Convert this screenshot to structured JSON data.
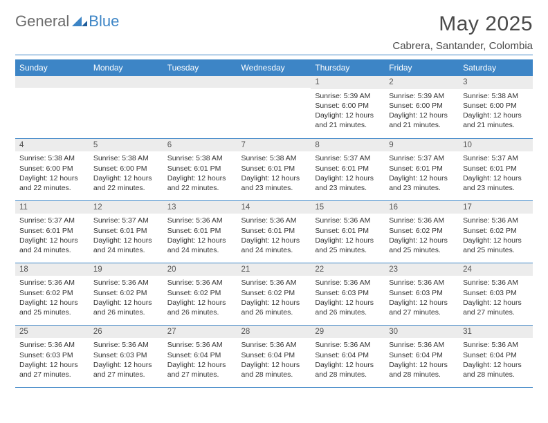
{
  "brand": {
    "general": "General",
    "blue": "Blue"
  },
  "header": {
    "title": "May 2025",
    "location": "Cabrera, Santander, Colombia"
  },
  "colors": {
    "accent": "#3d85c6",
    "header_text": "#ffffff",
    "daynum_bg": "#ececec",
    "body_text": "#333333",
    "page_bg": "#ffffff"
  },
  "typography": {
    "title_fontsize": 30,
    "location_fontsize": 15,
    "dayheader_fontsize": 12,
    "daynum_fontsize": 11.5,
    "detail_fontsize": 10.5
  },
  "calendar": {
    "day_headers": [
      "Sunday",
      "Monday",
      "Tuesday",
      "Wednesday",
      "Thursday",
      "Friday",
      "Saturday"
    ],
    "weeks": [
      [
        null,
        null,
        null,
        null,
        {
          "d": "1",
          "sunrise": "5:39 AM",
          "sunset": "6:00 PM",
          "daylight": "12 hours and 21 minutes."
        },
        {
          "d": "2",
          "sunrise": "5:39 AM",
          "sunset": "6:00 PM",
          "daylight": "12 hours and 21 minutes."
        },
        {
          "d": "3",
          "sunrise": "5:38 AM",
          "sunset": "6:00 PM",
          "daylight": "12 hours and 21 minutes."
        }
      ],
      [
        {
          "d": "4",
          "sunrise": "5:38 AM",
          "sunset": "6:00 PM",
          "daylight": "12 hours and 22 minutes."
        },
        {
          "d": "5",
          "sunrise": "5:38 AM",
          "sunset": "6:00 PM",
          "daylight": "12 hours and 22 minutes."
        },
        {
          "d": "6",
          "sunrise": "5:38 AM",
          "sunset": "6:01 PM",
          "daylight": "12 hours and 22 minutes."
        },
        {
          "d": "7",
          "sunrise": "5:38 AM",
          "sunset": "6:01 PM",
          "daylight": "12 hours and 23 minutes."
        },
        {
          "d": "8",
          "sunrise": "5:37 AM",
          "sunset": "6:01 PM",
          "daylight": "12 hours and 23 minutes."
        },
        {
          "d": "9",
          "sunrise": "5:37 AM",
          "sunset": "6:01 PM",
          "daylight": "12 hours and 23 minutes."
        },
        {
          "d": "10",
          "sunrise": "5:37 AM",
          "sunset": "6:01 PM",
          "daylight": "12 hours and 23 minutes."
        }
      ],
      [
        {
          "d": "11",
          "sunrise": "5:37 AM",
          "sunset": "6:01 PM",
          "daylight": "12 hours and 24 minutes."
        },
        {
          "d": "12",
          "sunrise": "5:37 AM",
          "sunset": "6:01 PM",
          "daylight": "12 hours and 24 minutes."
        },
        {
          "d": "13",
          "sunrise": "5:36 AM",
          "sunset": "6:01 PM",
          "daylight": "12 hours and 24 minutes."
        },
        {
          "d": "14",
          "sunrise": "5:36 AM",
          "sunset": "6:01 PM",
          "daylight": "12 hours and 24 minutes."
        },
        {
          "d": "15",
          "sunrise": "5:36 AM",
          "sunset": "6:01 PM",
          "daylight": "12 hours and 25 minutes."
        },
        {
          "d": "16",
          "sunrise": "5:36 AM",
          "sunset": "6:02 PM",
          "daylight": "12 hours and 25 minutes."
        },
        {
          "d": "17",
          "sunrise": "5:36 AM",
          "sunset": "6:02 PM",
          "daylight": "12 hours and 25 minutes."
        }
      ],
      [
        {
          "d": "18",
          "sunrise": "5:36 AM",
          "sunset": "6:02 PM",
          "daylight": "12 hours and 25 minutes."
        },
        {
          "d": "19",
          "sunrise": "5:36 AM",
          "sunset": "6:02 PM",
          "daylight": "12 hours and 26 minutes."
        },
        {
          "d": "20",
          "sunrise": "5:36 AM",
          "sunset": "6:02 PM",
          "daylight": "12 hours and 26 minutes."
        },
        {
          "d": "21",
          "sunrise": "5:36 AM",
          "sunset": "6:02 PM",
          "daylight": "12 hours and 26 minutes."
        },
        {
          "d": "22",
          "sunrise": "5:36 AM",
          "sunset": "6:03 PM",
          "daylight": "12 hours and 26 minutes."
        },
        {
          "d": "23",
          "sunrise": "5:36 AM",
          "sunset": "6:03 PM",
          "daylight": "12 hours and 27 minutes."
        },
        {
          "d": "24",
          "sunrise": "5:36 AM",
          "sunset": "6:03 PM",
          "daylight": "12 hours and 27 minutes."
        }
      ],
      [
        {
          "d": "25",
          "sunrise": "5:36 AM",
          "sunset": "6:03 PM",
          "daylight": "12 hours and 27 minutes."
        },
        {
          "d": "26",
          "sunrise": "5:36 AM",
          "sunset": "6:03 PM",
          "daylight": "12 hours and 27 minutes."
        },
        {
          "d": "27",
          "sunrise": "5:36 AM",
          "sunset": "6:04 PM",
          "daylight": "12 hours and 27 minutes."
        },
        {
          "d": "28",
          "sunrise": "5:36 AM",
          "sunset": "6:04 PM",
          "daylight": "12 hours and 28 minutes."
        },
        {
          "d": "29",
          "sunrise": "5:36 AM",
          "sunset": "6:04 PM",
          "daylight": "12 hours and 28 minutes."
        },
        {
          "d": "30",
          "sunrise": "5:36 AM",
          "sunset": "6:04 PM",
          "daylight": "12 hours and 28 minutes."
        },
        {
          "d": "31",
          "sunrise": "5:36 AM",
          "sunset": "6:04 PM",
          "daylight": "12 hours and 28 minutes."
        }
      ]
    ],
    "labels": {
      "sunrise": "Sunrise:",
      "sunset": "Sunset:",
      "daylight": "Daylight:"
    }
  }
}
